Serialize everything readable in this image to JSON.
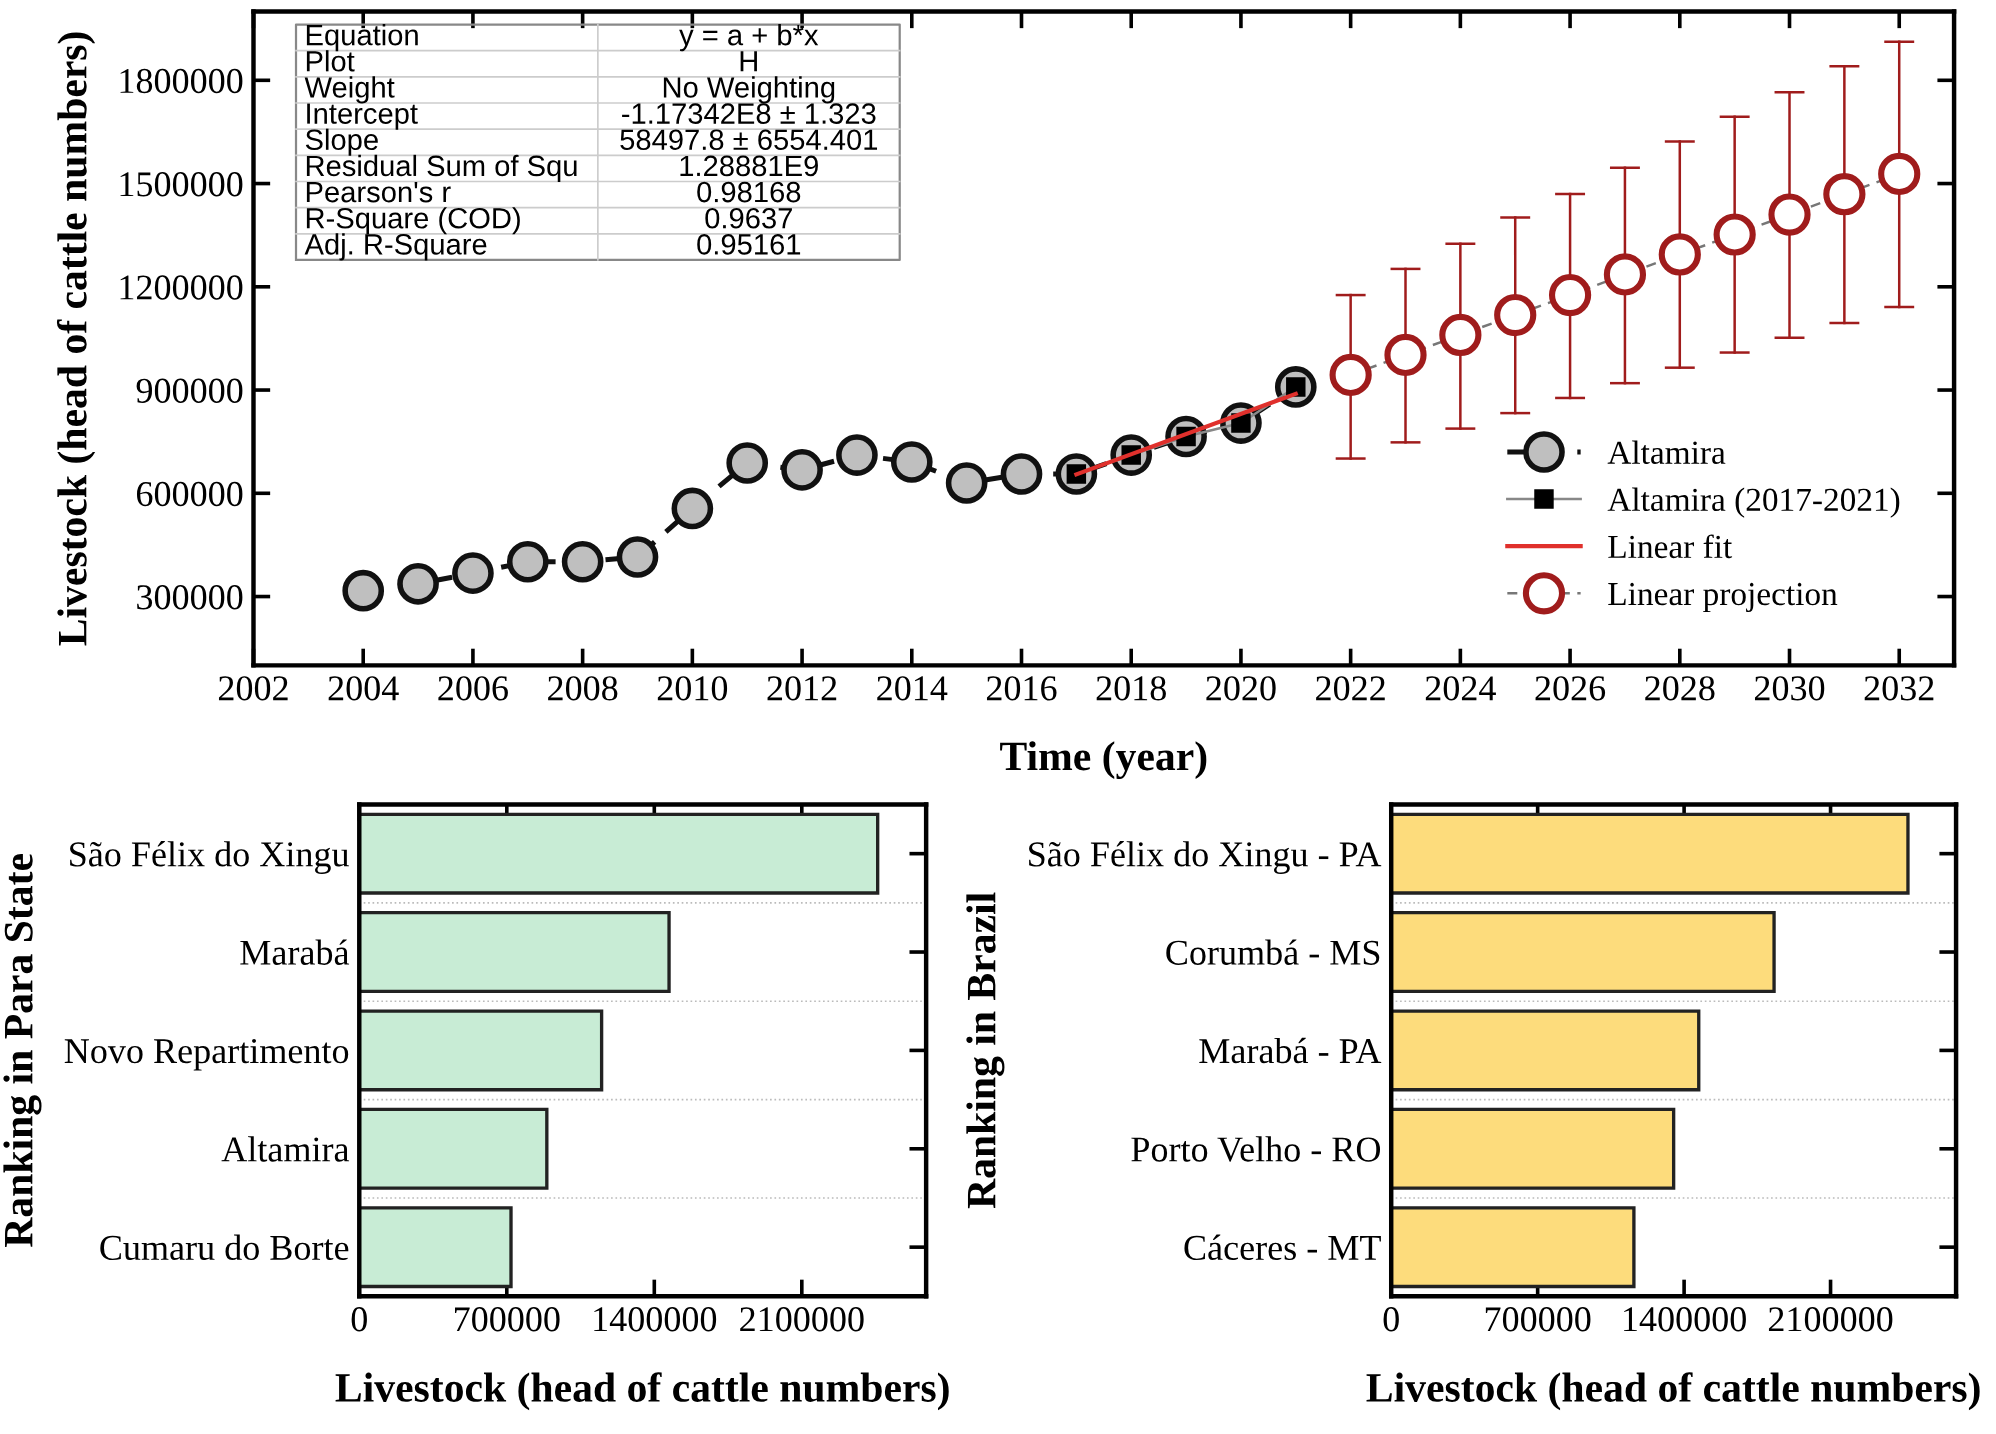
{
  "chart_data": [
    {
      "type": "line",
      "xlabel": "Time (year)",
      "ylabel": "Livestock (head of cattle numbers)",
      "xlim": [
        2002,
        2033
      ],
      "xticks": [
        2002,
        2004,
        2006,
        2008,
        2010,
        2012,
        2014,
        2016,
        2018,
        2020,
        2022,
        2024,
        2026,
        2028,
        2030,
        2032
      ],
      "ylim": [
        100000,
        2000000
      ],
      "yticks": [
        300000,
        600000,
        900000,
        1200000,
        1500000,
        1800000
      ],
      "grid": false,
      "legend": "bottom right",
      "series": [
        {
          "name": "Altamira",
          "type": "line",
          "color": "#bfbfbf",
          "marker": "circle",
          "line_style": "dashed",
          "x": [
            2004,
            2005,
            2006,
            2007,
            2008,
            2009,
            2010,
            2011,
            2012,
            2013,
            2014,
            2015,
            2016,
            2017,
            2018,
            2019,
            2020,
            2021
          ],
          "values": [
            317000,
            337000,
            368000,
            401000,
            401000,
            415000,
            556000,
            688000,
            668000,
            711000,
            691000,
            630000,
            656000,
            656000,
            711000,
            765000,
            804000,
            909000
          ]
        },
        {
          "name": "Altamira (2017-2021)",
          "type": "line",
          "color": "#000000",
          "marker": "square",
          "line_style": "solid",
          "x": [
            2017,
            2018,
            2019,
            2020,
            2021
          ],
          "values": [
            656000,
            711000,
            765000,
            804000,
            909000
          ]
        },
        {
          "name": "Linear fit",
          "type": "line",
          "color": "#e0302c",
          "marker": "none",
          "line_style": "solid",
          "x": [
            2017,
            2021
          ],
          "values": [
            655000,
            889000
          ]
        },
        {
          "name": "Linear projection",
          "type": "line",
          "color": "#a01c1c",
          "marker": "circle",
          "line_style": "dashed",
          "x": [
            2022,
            2023,
            2024,
            2025,
            2026,
            2027,
            2028,
            2029,
            2030,
            2031,
            2032
          ],
          "values": [
            944000,
            1002000,
            1060000,
            1118000,
            1176000,
            1236000,
            1294000,
            1352000,
            1410000,
            1469000,
            1528000
          ],
          "errors": [
            [
              701000,
              1176000
            ],
            [
              748000,
              1252000
            ],
            [
              788000,
              1325000
            ],
            [
              833000,
              1401000
            ],
            [
              877000,
              1470000
            ],
            [
              920000,
              1546000
            ],
            [
              965000,
              1622000
            ],
            [
              1009000,
              1694000
            ],
            [
              1052000,
              1765000
            ],
            [
              1095000,
              1841000
            ],
            [
              1141000,
              1912000
            ]
          ]
        }
      ],
      "annotations": [
        "Equation",
        "y = a + b*x",
        "Plot",
        "H",
        "Weight",
        "No Weighting",
        "Intercept",
        "-1.17342E8 ± 1.323",
        "Slope",
        "58497.8 ± 6554.401",
        "Residual Sum of Squ",
        "1.28881E9",
        "Pearson's r",
        "0.98168",
        "R-Square (COD)",
        "0.9637",
        "Adj. R-Square",
        "0.95161"
      ]
    },
    {
      "type": "bar",
      "orientation": "horizontal",
      "xlabel": "Livestock (head of cattle numbers)",
      "ylabel": "Ranking in Para State",
      "categories": [
        "São Félix do Xingu",
        "Marabá",
        "Novo Repartimento",
        "Altamira",
        "Cumaru do Borte"
      ],
      "values": [
        2460000,
        1470000,
        1150000,
        890000,
        720000
      ],
      "color": "#c8ecd5",
      "xlim": [
        0,
        2690000
      ],
      "xticks": [
        0,
        700000,
        1400000,
        2100000
      ],
      "grid": false
    },
    {
      "type": "bar",
      "orientation": "horizontal",
      "xlabel": "Livestock (head of cattle numbers)",
      "ylabel": "Ranking in Brazil",
      "categories": [
        "São Félix do Xingu - PA",
        "Corumbá - MS",
        "Marabá - PA",
        "Porto Velho - RO",
        "Cáceres - MT"
      ],
      "values": [
        2470000,
        1830000,
        1470000,
        1350000,
        1160000
      ],
      "color": "#fddc7c",
      "xlim": [
        0,
        2700000
      ],
      "xticks": [
        0,
        700000,
        1400000,
        2100000
      ],
      "grid": false
    }
  ]
}
